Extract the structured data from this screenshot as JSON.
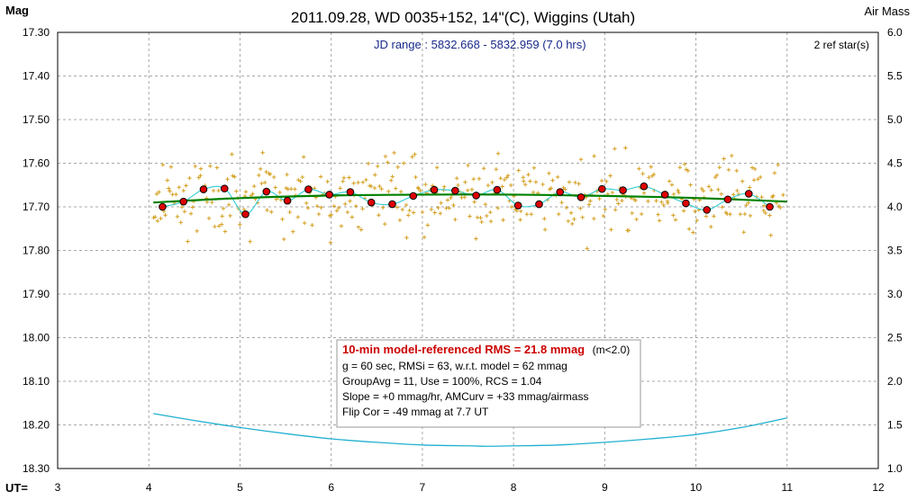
{
  "colors": {
    "background": "#ffffff",
    "grid": "#a8a8a8",
    "raw_points": "#d4a020",
    "binned_points": "#e00000",
    "fit_line": "#008000",
    "model_curve": "#40d0d8",
    "airmass_curve": "#20b0d0",
    "info_text_red": "#cc0000",
    "jd_text": "#1a2a8a"
  },
  "chart_data": {
    "type": "scatter",
    "title": "2011.09.28, WD 0035+152, 14\"(C), Wiggins (Utah)",
    "ylabel_left": "Mag",
    "ylabel_right": "Air Mass",
    "xlabel": "UT=",
    "subtitle": "JD range : 5832.668 - 5832.959 (7.0 hrs)",
    "ref_stars": "2 ref star(s)",
    "xlim": [
      3,
      12
    ],
    "ylim_left": [
      17.3,
      18.3
    ],
    "ylim_left_reversed": true,
    "ylim_right": [
      6.0,
      1.0
    ],
    "x_ticks": [
      "3",
      "4",
      "5",
      "6",
      "7",
      "8",
      "9",
      "10",
      "11",
      "12"
    ],
    "y_ticks_left": [
      "17.30",
      "17.40",
      "17.50",
      "17.60",
      "17.70",
      "17.80",
      "17.90",
      "18.00",
      "18.10",
      "18.20",
      "18.30"
    ],
    "y_ticks_right": [
      "6.0",
      "5.5",
      "5.0",
      "4.5",
      "4.0",
      "3.5",
      "3.0",
      "2.5",
      "2.0",
      "1.5",
      "1.0"
    ],
    "grid": true,
    "binned": {
      "x": [
        4.15,
        4.38,
        4.6,
        4.83,
        5.06,
        5.29,
        5.52,
        5.75,
        5.98,
        6.21,
        6.44,
        6.67,
        6.9,
        7.13,
        7.36,
        7.59,
        7.82,
        8.05,
        8.28,
        8.51,
        8.74,
        8.97,
        9.2,
        9.43,
        9.66,
        9.89,
        10.12,
        10.35,
        10.58,
        10.81
      ],
      "y": [
        17.7,
        17.688,
        17.66,
        17.658,
        17.717,
        17.665,
        17.686,
        17.66,
        17.672,
        17.666,
        17.69,
        17.694,
        17.675,
        17.661,
        17.663,
        17.674,
        17.661,
        17.697,
        17.694,
        17.666,
        17.678,
        17.659,
        17.662,
        17.653,
        17.672,
        17.692,
        17.707,
        17.683,
        17.67,
        17.7
      ]
    },
    "fit_line": {
      "x": [
        4.05,
        5.0,
        6.0,
        7.0,
        8.0,
        9.0,
        9.7,
        10.3,
        11.0
      ],
      "y": [
        17.69,
        17.68,
        17.674,
        17.672,
        17.672,
        17.675,
        17.678,
        17.682,
        17.688
      ]
    },
    "airmass": {
      "x": [
        4.05,
        4.5,
        5.0,
        5.5,
        6.0,
        6.5,
        7.0,
        7.5,
        7.7,
        8.0,
        8.5,
        9.0,
        9.5,
        10.0,
        10.5,
        11.0
      ],
      "y": [
        1.63,
        1.55,
        1.47,
        1.4,
        1.34,
        1.3,
        1.27,
        1.26,
        1.255,
        1.26,
        1.27,
        1.3,
        1.34,
        1.39,
        1.47,
        1.58
      ]
    },
    "raw_points_range": {
      "x": [
        4.05,
        10.95
      ],
      "y_center": 17.678,
      "y_scatter": 0.063
    },
    "info_box": {
      "line1_red": "10-min model-referenced RMS = 21.8 mmag",
      "line1_black": "(m<2.0)",
      "line2": "g = 60 sec, RMSi = 63, w.r.t. model = 62 mmag",
      "line3": "GroupAvg = 11, Use = 100%, RCS = 1.04",
      "line4": "Slope = +0 mmag/hr, AMCurv = +33 mmag/airmass",
      "line5": "Flip Cor = -49 mmag at 7.7 UT"
    }
  }
}
